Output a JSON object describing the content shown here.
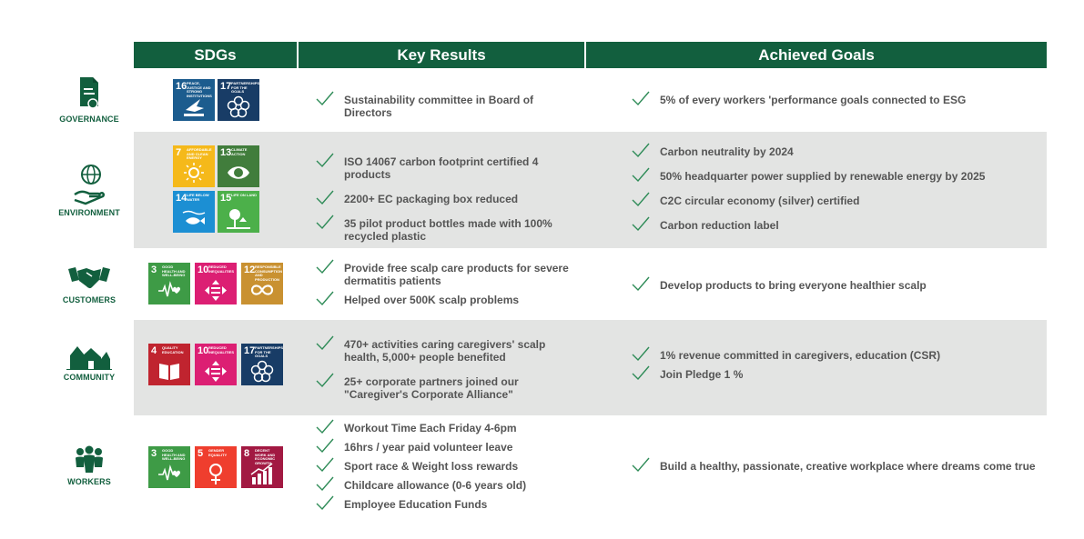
{
  "headers": {
    "sdgs": "SDGs",
    "key_results": "Key Results",
    "achieved_goals": "Achieved Goals"
  },
  "rows": [
    {
      "category": "GOVERNANCE",
      "sdgs": [
        {
          "num": "16",
          "text": "PEACE, JUSTICE AND STRONG INSTITUTIONS",
          "color": "#1c5c8e",
          "icon": "dove-icon"
        },
        {
          "num": "17",
          "text": "PARTNERSHIPS FOR THE GOALS",
          "color": "#183c66",
          "icon": "flower-ring-icon"
        }
      ],
      "key_results": [
        "Sustainability committee in Board of Directors"
      ],
      "achieved_goals": [
        "5% of every workers 'performance goals connected to ESG"
      ]
    },
    {
      "category": "ENVIRONMENT",
      "sdgs": [
        {
          "num": "7",
          "text": "AFFORDABLE AND CLEAN ENERGY",
          "color": "#f5b91a",
          "icon": "sun-icon"
        },
        {
          "num": "13",
          "text": "CLIMATE ACTION",
          "color": "#417d3c",
          "icon": "eye-globe-icon"
        },
        {
          "num": "14",
          "text": "LIFE BELOW WATER",
          "color": "#1c8fd3",
          "icon": "fish-icon"
        },
        {
          "num": "15",
          "text": "LIFE ON LAND",
          "color": "#4cb04a",
          "icon": "tree-icon"
        }
      ],
      "key_results": [
        "ISO 14067 carbon footprint certified 4 products",
        "2200+ EC packaging box reduced",
        "35 pilot product bottles made with 100% recycled plastic"
      ],
      "achieved_goals": [
        "Carbon neutrality by 2024",
        "50% headquarter power supplied by renewable energy by 2025",
        "C2C circular economy (silver) certified",
        "Carbon reduction label"
      ]
    },
    {
      "category": "CUSTOMERS",
      "sdgs": [
        {
          "num": "3",
          "text": "GOOD HEALTH AND WELL-BEING",
          "color": "#3e9b46",
          "icon": "heartbeat-icon"
        },
        {
          "num": "10",
          "text": "REDUCED INEQUALITIES",
          "color": "#dc1f73",
          "icon": "equality-icon"
        },
        {
          "num": "12",
          "text": "RESPONSIBLE CONSUMPTION AND PRODUCTION",
          "color": "#c99131",
          "icon": "infinity-icon"
        }
      ],
      "key_results": [
        "Provide free scalp care products for severe dermatitis patients",
        "Helped over 500K scalp problems"
      ],
      "achieved_goals": [
        "Develop products to bring everyone healthier scalp"
      ]
    },
    {
      "category": "COMMUNITY",
      "sdgs": [
        {
          "num": "4",
          "text": "QUALITY EDUCATION",
          "color": "#c0242f",
          "icon": "book-icon"
        },
        {
          "num": "10",
          "text": "REDUCED INEQUALITIES",
          "color": "#dc1f73",
          "icon": "equality-icon"
        },
        {
          "num": "17",
          "text": "PARTNERSHIPS FOR THE GOALS",
          "color": "#183c66",
          "icon": "flower-ring-icon"
        }
      ],
      "key_results": [
        "470+ activities caring caregivers' scalp health, 5,000+ people benefited",
        "25+ corporate partners joined our \"Caregiver's Corporate Alliance\""
      ],
      "achieved_goals": [
        "1% revenue committed in caregivers, education (CSR)",
        "Join Pledge 1 %"
      ]
    },
    {
      "category": "WORKERS",
      "sdgs": [
        {
          "num": "3",
          "text": "GOOD HEALTH AND WELL-BEING",
          "color": "#3e9b46",
          "icon": "heartbeat-icon"
        },
        {
          "num": "5",
          "text": "GENDER EQUALITY",
          "color": "#ef3e2e",
          "icon": "gender-icon"
        },
        {
          "num": "8",
          "text": "DECENT WORK AND ECONOMIC GROWTH",
          "color": "#a21942",
          "icon": "growth-chart-icon"
        }
      ],
      "key_results": [
        "Workout Time Each Friday 4-6pm",
        "16hrs / year paid volunteer leave",
        "Sport race &  Weight loss rewards",
        "Childcare allowance (0-6 years old)",
        "Employee Education Funds"
      ],
      "achieved_goals": [
        "Build a healthy, passionate, creative workplace where dreams come true"
      ]
    }
  ],
  "colors": {
    "header_bg": "#125f3e",
    "row_gray": "#e3e4e3",
    "check": "#2e8b57",
    "category_text": "#125f3e"
  }
}
